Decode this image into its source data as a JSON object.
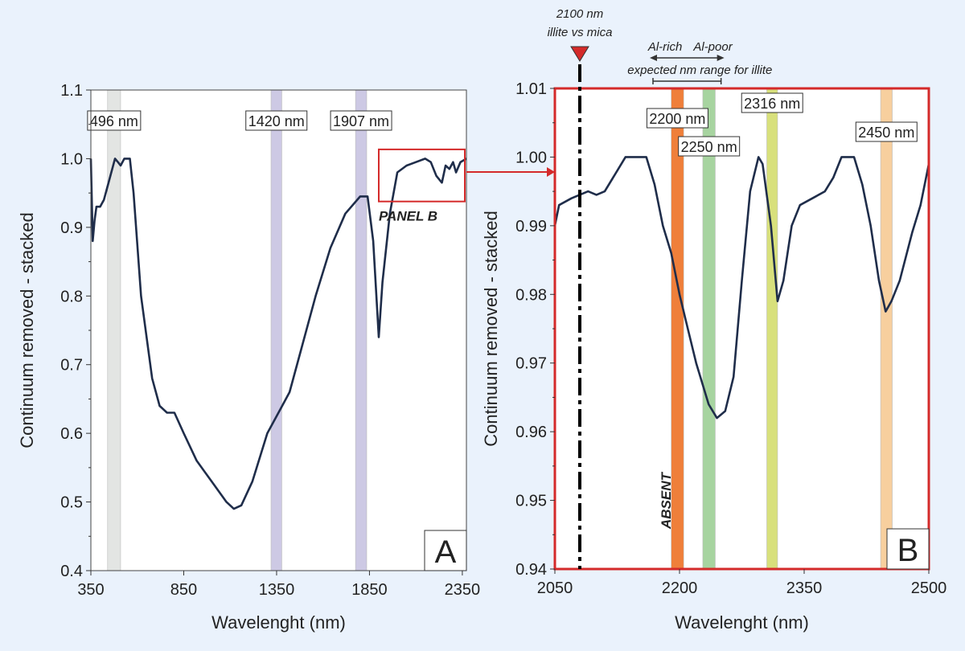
{
  "chart_data": [
    {
      "type": "line",
      "panel": "A",
      "panel_label": "A",
      "xlabel": "Wavelenght (nm)",
      "ylabel": "Continuum removed - stacked",
      "xlim": [
        350,
        2372
      ],
      "ylim": [
        0.4,
        1.1
      ],
      "xticks": [
        350,
        850,
        1350,
        1850,
        2350
      ],
      "yticks": [
        0.4,
        0.5,
        0.6,
        0.7,
        0.8,
        0.9,
        1.0,
        1.1
      ],
      "ytick_labels": [
        "0.4",
        "0.5",
        "0.6",
        "0.7",
        "0.8",
        "0.9",
        "1.0",
        "1.1"
      ],
      "x": [
        350,
        360,
        370,
        380,
        400,
        420,
        450,
        480,
        496,
        510,
        530,
        560,
        580,
        620,
        680,
        720,
        760,
        800,
        850,
        920,
        1000,
        1080,
        1120,
        1160,
        1220,
        1300,
        1380,
        1420,
        1480,
        1560,
        1640,
        1720,
        1800,
        1840,
        1870,
        1900,
        1920,
        1960,
        2000,
        2050,
        2100,
        2150,
        2180,
        2210,
        2240,
        2260,
        2280,
        2300,
        2316,
        2340,
        2372
      ],
      "y": [
        1.0,
        0.88,
        0.91,
        0.93,
        0.93,
        0.94,
        0.97,
        1.0,
        0.995,
        0.99,
        1.0,
        1.0,
        0.95,
        0.8,
        0.68,
        0.64,
        0.63,
        0.63,
        0.6,
        0.56,
        0.53,
        0.5,
        0.49,
        0.495,
        0.53,
        0.6,
        0.64,
        0.66,
        0.72,
        0.8,
        0.87,
        0.92,
        0.945,
        0.945,
        0.88,
        0.74,
        0.82,
        0.92,
        0.98,
        0.99,
        0.995,
        1.0,
        0.995,
        0.975,
        0.965,
        0.99,
        0.985,
        0.995,
        0.98,
        0.995,
        1.0
      ],
      "bands": [
        {
          "label": "496 nm",
          "from": 440,
          "to": 510,
          "color": "#e3e5e3"
        },
        {
          "label": "1420 nm",
          "from": 1320,
          "to": 1378,
          "color": "#cdc9e4"
        },
        {
          "label": "1907 nm",
          "from": 1775,
          "to": 1835,
          "color": "#cdc9e4"
        }
      ],
      "inset": {
        "label": "PANEL B",
        "x": [
          1900,
          2372
        ],
        "y": [
          0.94,
          1.01
        ]
      }
    },
    {
      "type": "line",
      "panel": "B",
      "panel_label": "B",
      "xlabel": "Wavelenght (nm)",
      "ylabel": "Continuum removed - stacked",
      "xlim": [
        2050,
        2500
      ],
      "ylim": [
        0.94,
        1.01
      ],
      "xticks": [
        2050,
        2200,
        2350,
        2500
      ],
      "yticks": [
        0.94,
        0.95,
        0.96,
        0.97,
        0.98,
        0.99,
        1.0,
        1.01
      ],
      "ytick_labels": [
        "0.94",
        "0.95",
        "0.96",
        "0.97",
        "0.98",
        "0.99",
        "1.00",
        "1.01"
      ],
      "x": [
        2050,
        2055,
        2070,
        2090,
        2100,
        2110,
        2120,
        2135,
        2150,
        2160,
        2170,
        2180,
        2190,
        2200,
        2210,
        2220,
        2235,
        2245,
        2255,
        2265,
        2275,
        2285,
        2295,
        2300,
        2310,
        2318,
        2325,
        2335,
        2345,
        2360,
        2375,
        2385,
        2395,
        2410,
        2420,
        2430,
        2440,
        2448,
        2455,
        2465,
        2480,
        2490,
        2500
      ],
      "y": [
        0.99,
        0.993,
        0.994,
        0.995,
        0.9945,
        0.995,
        0.997,
        1.0,
        1.0,
        1.0,
        0.996,
        0.99,
        0.986,
        0.98,
        0.975,
        0.97,
        0.964,
        0.962,
        0.963,
        0.968,
        0.982,
        0.995,
        1.0,
        0.999,
        0.99,
        0.979,
        0.982,
        0.99,
        0.993,
        0.994,
        0.995,
        0.997,
        1.0,
        1.0,
        0.996,
        0.99,
        0.982,
        0.9775,
        0.979,
        0.982,
        0.989,
        0.993,
        0.999
      ],
      "bands": [
        {
          "label": "2200 nm",
          "from": 2190,
          "to": 2205,
          "color": "#ef7f3a"
        },
        {
          "label": "2250 nm",
          "from": 2228,
          "to": 2243,
          "color": "#a7d4a0"
        },
        {
          "label": "2316 nm",
          "from": 2305,
          "to": 2318,
          "color": "#d8e07c"
        },
        {
          "label": "2450 nm",
          "from": 2442,
          "to": 2456,
          "color": "#f7cf9e"
        }
      ],
      "annotations": {
        "marker_nm": 2080,
        "marker_title": "2100 nm",
        "marker_subtitle": "illite vs mica",
        "al_rich": "Al-rich",
        "al_poor": "Al-poor",
        "range_label": "expected nm range for illite",
        "range_nm": [
          2200,
          2250
        ],
        "absent": "ABSENT"
      }
    }
  ]
}
